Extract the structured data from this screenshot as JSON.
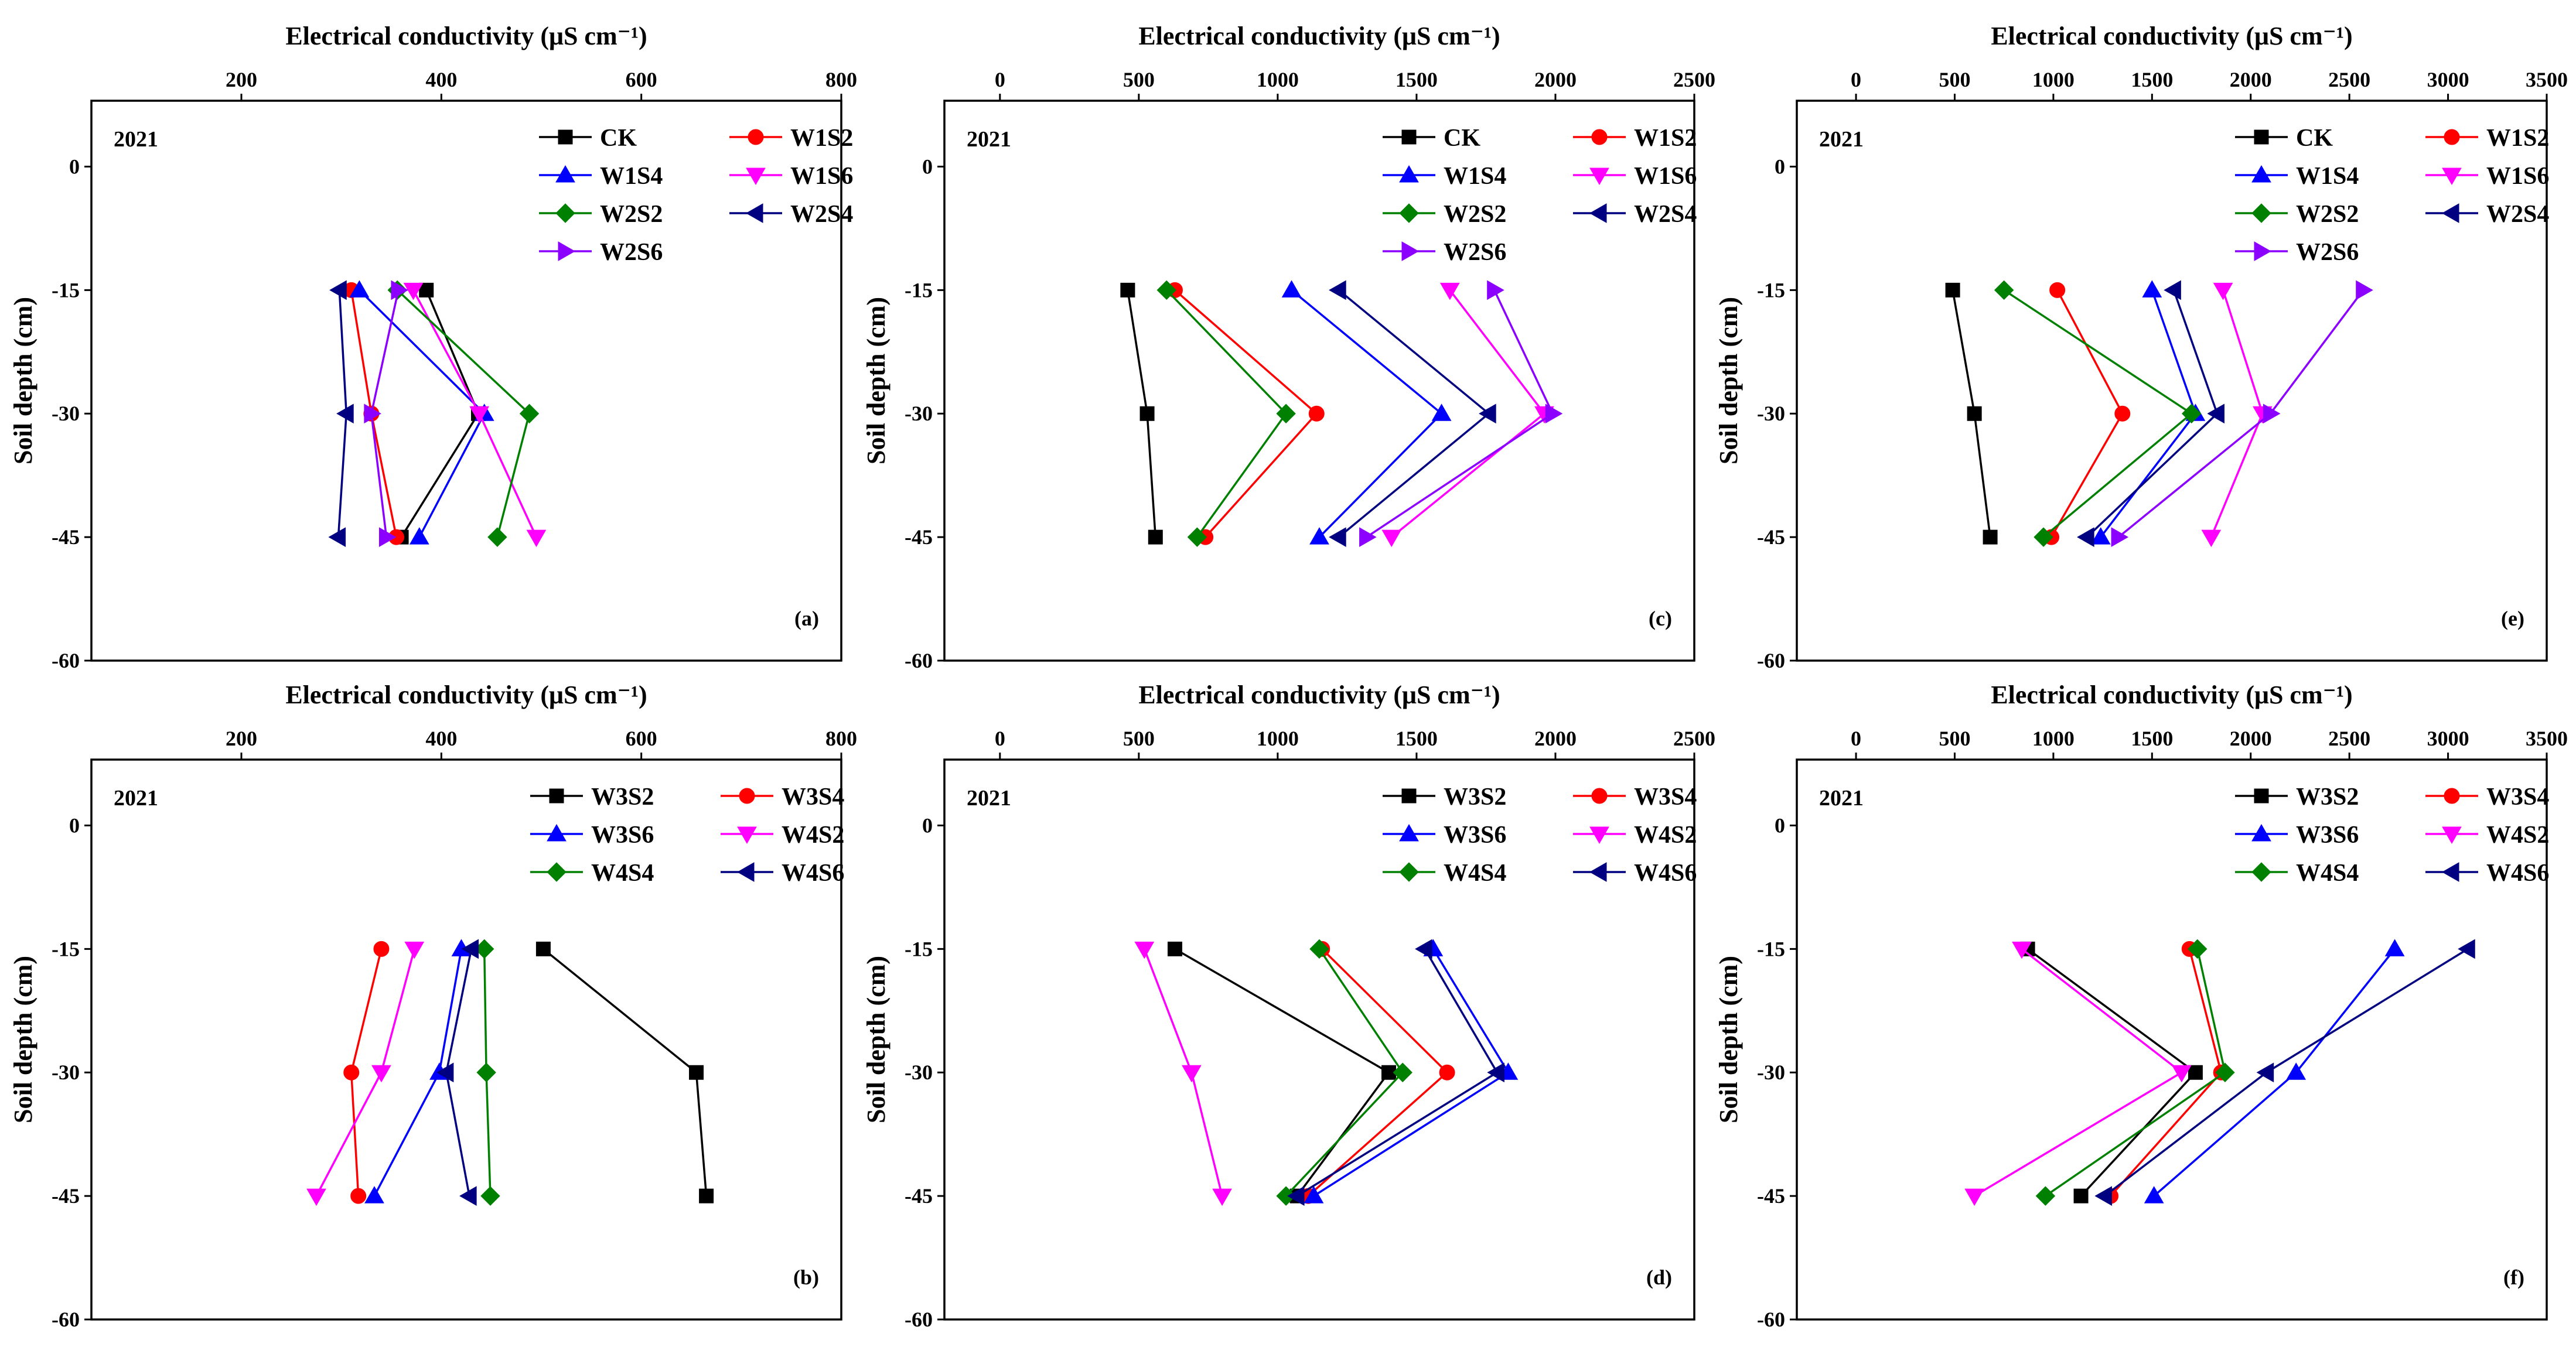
{
  "colors": {
    "CK": "#000000",
    "W1S2": "#ff0000",
    "W1S4": "#0000ff",
    "W1S6": "#ff00ff",
    "W2S2": "#008000",
    "W2S4": "#000080",
    "W2S6": "#8b00ff",
    "W3S2": "#000000",
    "W3S4": "#ff0000",
    "W3S6": "#0000ff",
    "W4S2": "#ff00ff",
    "W4S4": "#008000",
    "W4S6": "#000080"
  },
  "chart_data": [
    {
      "type": "line",
      "panel": "(a)",
      "year": "2021",
      "xlabel": "Electrical conductivity (μS cm⁻¹)",
      "ylabel": "Soil depth (cm)",
      "xlim": [
        50,
        800
      ],
      "xticks": [
        200,
        400,
        600,
        800
      ],
      "ylim": [
        -60,
        8
      ],
      "yticks": [
        0,
        -15,
        -30,
        -45,
        -60
      ],
      "legend_columns": 2,
      "series": [
        {
          "name": "CK",
          "marker": "square",
          "x": [
            385,
            437,
            360
          ],
          "y": [
            -15,
            -30,
            -45
          ]
        },
        {
          "name": "W1S2",
          "marker": "circle",
          "x": [
            310,
            330,
            355
          ],
          "y": [
            -15,
            -30,
            -45
          ]
        },
        {
          "name": "W1S4",
          "marker": "triangle-up",
          "x": [
            318,
            443,
            378
          ],
          "y": [
            -15,
            -30,
            -45
          ]
        },
        {
          "name": "W1S6",
          "marker": "triangle-down",
          "x": [
            372,
            438,
            495
          ],
          "y": [
            -15,
            -30,
            -45
          ]
        },
        {
          "name": "W2S2",
          "marker": "diamond",
          "x": [
            356,
            488,
            456
          ],
          "y": [
            -15,
            -30,
            -45
          ]
        },
        {
          "name": "W2S4",
          "marker": "triangle-left",
          "x": [
            298,
            305,
            297
          ],
          "y": [
            -15,
            -30,
            -45
          ]
        },
        {
          "name": "W2S6",
          "marker": "triangle-right",
          "x": [
            357,
            330,
            345
          ],
          "y": [
            -15,
            -30,
            -45
          ]
        }
      ]
    },
    {
      "type": "line",
      "panel": "(b)",
      "year": "2021",
      "xlabel": "Electrical conductivity (μS cm⁻¹)",
      "ylabel": "Soil depth (cm)",
      "xlim": [
        50,
        800
      ],
      "xticks": [
        200,
        400,
        600,
        800
      ],
      "ylim": [
        -60,
        8
      ],
      "yticks": [
        0,
        -15,
        -30,
        -45,
        -60
      ],
      "legend_columns": 2,
      "series": [
        {
          "name": "W3S2",
          "marker": "square",
          "x": [
            502,
            655,
            665
          ],
          "y": [
            -15,
            -30,
            -45
          ]
        },
        {
          "name": "W3S4",
          "marker": "circle",
          "x": [
            340,
            310,
            317
          ],
          "y": [
            -15,
            -30,
            -45
          ]
        },
        {
          "name": "W3S6",
          "marker": "triangle-up",
          "x": [
            420,
            398,
            333
          ],
          "y": [
            -15,
            -30,
            -45
          ]
        },
        {
          "name": "W4S2",
          "marker": "triangle-down",
          "x": [
            373,
            340,
            275
          ],
          "y": [
            -15,
            -30,
            -45
          ]
        },
        {
          "name": "W4S4",
          "marker": "diamond",
          "x": [
            443,
            445,
            449
          ],
          "y": [
            -15,
            -30,
            -45
          ]
        },
        {
          "name": "W4S6",
          "marker": "triangle-left",
          "x": [
            430,
            405,
            428
          ],
          "y": [
            -15,
            -30,
            -45
          ]
        }
      ]
    },
    {
      "type": "line",
      "panel": "(c)",
      "year": "2021",
      "xlabel": "Electrical conductivity (μS cm⁻¹)",
      "ylabel": "Soil depth (cm)",
      "xlim": [
        -200,
        2500
      ],
      "xticks": [
        0,
        500,
        1000,
        1500,
        2000,
        2500
      ],
      "ylim": [
        -60,
        8
      ],
      "yticks": [
        0,
        -15,
        -30,
        -45,
        -60
      ],
      "legend_columns": 2,
      "series": [
        {
          "name": "CK",
          "marker": "square",
          "x": [
            460,
            530,
            560
          ],
          "y": [
            -15,
            -30,
            -45
          ]
        },
        {
          "name": "W1S2",
          "marker": "circle",
          "x": [
            630,
            1140,
            740
          ],
          "y": [
            -15,
            -30,
            -45
          ]
        },
        {
          "name": "W1S4",
          "marker": "triangle-up",
          "x": [
            1050,
            1590,
            1150
          ],
          "y": [
            -15,
            -30,
            -45
          ]
        },
        {
          "name": "W1S6",
          "marker": "triangle-down",
          "x": [
            1620,
            1960,
            1410
          ],
          "y": [
            -15,
            -30,
            -45
          ]
        },
        {
          "name": "W2S2",
          "marker": "diamond",
          "x": [
            600,
            1030,
            710
          ],
          "y": [
            -15,
            -30,
            -45
          ]
        },
        {
          "name": "W2S4",
          "marker": "triangle-left",
          "x": [
            1220,
            1760,
            1220
          ],
          "y": [
            -15,
            -30,
            -45
          ]
        },
        {
          "name": "W2S6",
          "marker": "triangle-right",
          "x": [
            1780,
            1990,
            1320
          ],
          "y": [
            -15,
            -30,
            -45
          ]
        }
      ]
    },
    {
      "type": "line",
      "panel": "(d)",
      "year": "2021",
      "xlabel": "Electrical conductivity (μS cm⁻¹)",
      "ylabel": "Soil depth (cm)",
      "xlim": [
        -200,
        2500
      ],
      "xticks": [
        0,
        500,
        1000,
        1500,
        2000,
        2500
      ],
      "ylim": [
        -60,
        8
      ],
      "yticks": [
        0,
        -15,
        -30,
        -45,
        -60
      ],
      "legend_columns": 2,
      "series": [
        {
          "name": "W3S2",
          "marker": "square",
          "x": [
            630,
            1400,
            1070
          ],
          "y": [
            -15,
            -30,
            -45
          ]
        },
        {
          "name": "W3S4",
          "marker": "circle",
          "x": [
            1160,
            1610,
            1110
          ],
          "y": [
            -15,
            -30,
            -45
          ]
        },
        {
          "name": "W3S6",
          "marker": "triangle-up",
          "x": [
            1560,
            1830,
            1130
          ],
          "y": [
            -15,
            -30,
            -45
          ]
        },
        {
          "name": "W4S2",
          "marker": "triangle-down",
          "x": [
            520,
            690,
            800
          ],
          "y": [
            -15,
            -30,
            -45
          ]
        },
        {
          "name": "W4S4",
          "marker": "diamond",
          "x": [
            1150,
            1450,
            1030
          ],
          "y": [
            -15,
            -30,
            -45
          ]
        },
        {
          "name": "W4S6",
          "marker": "triangle-left",
          "x": [
            1530,
            1790,
            1070
          ],
          "y": [
            -15,
            -30,
            -45
          ]
        }
      ]
    },
    {
      "type": "line",
      "panel": "(e)",
      "year": "2021",
      "xlabel": "Electrical conductivity (μS cm⁻¹)",
      "ylabel": "Soil depth (cm)",
      "xlim": [
        -300,
        3500
      ],
      "xticks": [
        0,
        500,
        1000,
        1500,
        2000,
        2500,
        3000,
        3500
      ],
      "ylim": [
        -60,
        8
      ],
      "yticks": [
        0,
        -15,
        -30,
        -45,
        -60
      ],
      "legend_columns": 2,
      "series": [
        {
          "name": "CK",
          "marker": "square",
          "x": [
            490,
            600,
            680
          ],
          "y": [
            -15,
            -30,
            -45
          ]
        },
        {
          "name": "W1S2",
          "marker": "circle",
          "x": [
            1020,
            1350,
            990
          ],
          "y": [
            -15,
            -30,
            -45
          ]
        },
        {
          "name": "W1S4",
          "marker": "triangle-up",
          "x": [
            1500,
            1720,
            1240
          ],
          "y": [
            -15,
            -30,
            -45
          ]
        },
        {
          "name": "W1S6",
          "marker": "triangle-down",
          "x": [
            1860,
            2060,
            1800
          ],
          "y": [
            -15,
            -30,
            -45
          ]
        },
        {
          "name": "W2S2",
          "marker": "diamond",
          "x": [
            750,
            1700,
            950
          ],
          "y": [
            -15,
            -30,
            -45
          ]
        },
        {
          "name": "W2S4",
          "marker": "triangle-left",
          "x": [
            1610,
            1830,
            1170
          ],
          "y": [
            -15,
            -30,
            -45
          ]
        },
        {
          "name": "W2S6",
          "marker": "triangle-right",
          "x": [
            2570,
            2100,
            1330
          ],
          "y": [
            -15,
            -30,
            -45
          ]
        }
      ]
    },
    {
      "type": "line",
      "panel": "(f)",
      "year": "2021",
      "xlabel": "Electrical conductivity (μS cm⁻¹)",
      "ylabel": "Soil depth (cm)",
      "xlim": [
        -300,
        3500
      ],
      "xticks": [
        0,
        500,
        1000,
        1500,
        2000,
        2500,
        3000,
        3500
      ],
      "ylim": [
        -60,
        8
      ],
      "yticks": [
        0,
        -15,
        -30,
        -45,
        -60
      ],
      "legend_columns": 2,
      "series": [
        {
          "name": "W3S2",
          "marker": "square",
          "x": [
            870,
            1720,
            1140
          ],
          "y": [
            -15,
            -30,
            -45
          ]
        },
        {
          "name": "W3S4",
          "marker": "circle",
          "x": [
            1690,
            1850,
            1290
          ],
          "y": [
            -15,
            -30,
            -45
          ]
        },
        {
          "name": "W3S6",
          "marker": "triangle-up",
          "x": [
            2730,
            2230,
            1510
          ],
          "y": [
            -15,
            -30,
            -45
          ]
        },
        {
          "name": "W4S2",
          "marker": "triangle-down",
          "x": [
            840,
            1650,
            600
          ],
          "y": [
            -15,
            -30,
            -45
          ]
        },
        {
          "name": "W4S4",
          "marker": "diamond",
          "x": [
            1730,
            1870,
            960
          ],
          "y": [
            -15,
            -30,
            -45
          ]
        },
        {
          "name": "W4S6",
          "marker": "triangle-left",
          "x": [
            3100,
            2080,
            1260
          ],
          "y": [
            -15,
            -30,
            -45
          ]
        }
      ]
    }
  ]
}
